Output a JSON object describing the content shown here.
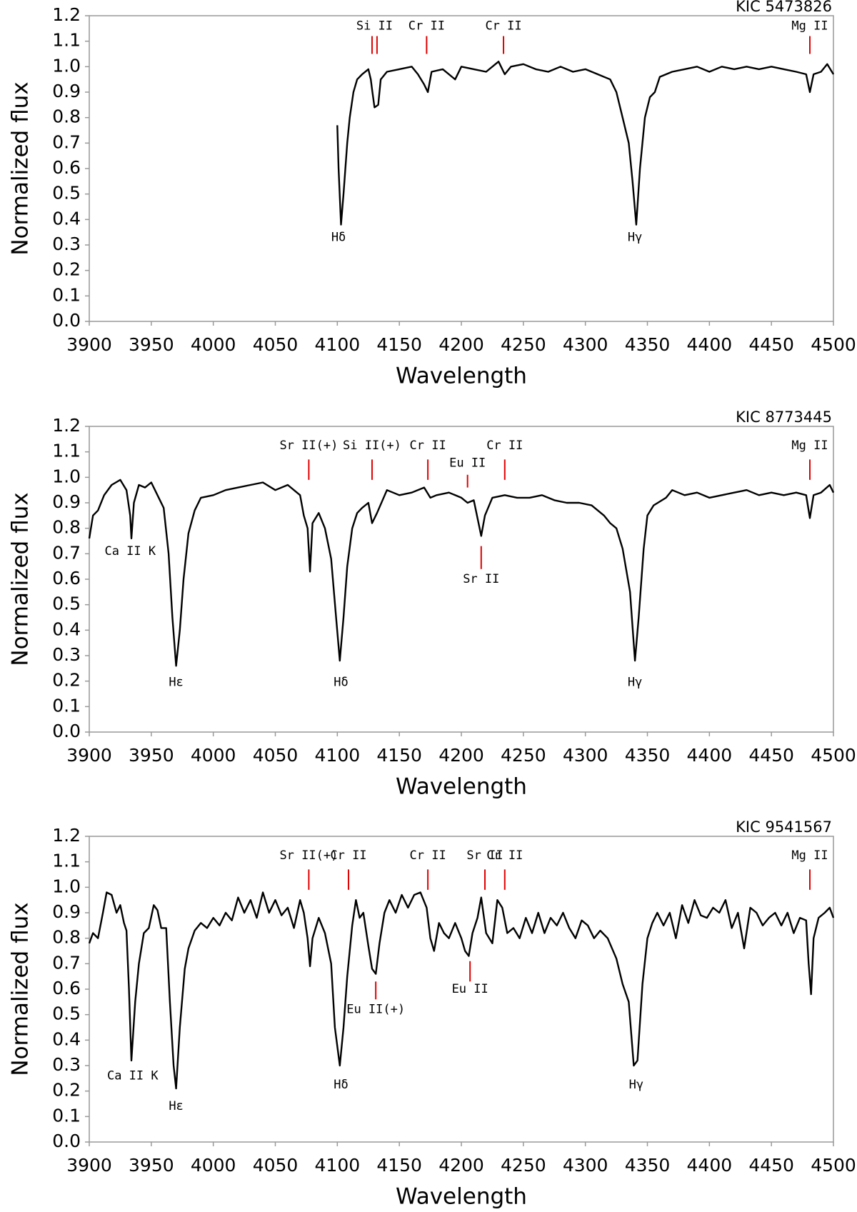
{
  "chart_data": [
    {
      "type": "line",
      "title": "KIC 5473826",
      "xlabel": "Wavelength",
      "ylabel": "Normalized flux",
      "color": "#000000",
      "marker_color": "#e00000",
      "xlim": [
        3900,
        4500
      ],
      "xticks": [
        3900,
        3950,
        4000,
        4050,
        4100,
        4150,
        4200,
        4250,
        4300,
        4350,
        4400,
        4450,
        4500
      ],
      "ylim": [
        0,
        1.2
      ],
      "yticks": [
        {
          "value": 0,
          "label": "0.0"
        },
        0.1,
        0.2,
        0.3,
        0.4,
        0.5,
        0.6,
        0.7,
        0.8,
        0.9,
        {
          "value": 1,
          "label": "1.0"
        },
        1.1,
        1.2
      ],
      "x": [
        4100,
        4101,
        4103,
        4105,
        4108,
        4110,
        4113,
        4116,
        4120,
        4125,
        4127,
        4128,
        4130,
        4133,
        4135,
        4140,
        4150,
        4160,
        4165,
        4170,
        4173,
        4176,
        4185,
        4195,
        4200,
        4210,
        4220,
        4230,
        4235,
        4240,
        4250,
        4260,
        4270,
        4280,
        4290,
        4300,
        4310,
        4320,
        4325,
        4330,
        4335,
        4338,
        4341,
        4344,
        4348,
        4352,
        4356,
        4360,
        4370,
        4380,
        4390,
        4400,
        4410,
        4420,
        4430,
        4440,
        4450,
        4460,
        4470,
        4478,
        4481,
        4484,
        4490,
        4495,
        4500
      ],
      "values": [
        0.77,
        0.6,
        0.38,
        0.5,
        0.7,
        0.8,
        0.9,
        0.95,
        0.97,
        0.99,
        0.95,
        0.91,
        0.84,
        0.85,
        0.95,
        0.98,
        0.99,
        1.0,
        0.97,
        0.93,
        0.9,
        0.98,
        0.99,
        0.95,
        1.0,
        0.99,
        0.98,
        1.02,
        0.97,
        1.0,
        1.01,
        0.99,
        0.98,
        1.0,
        0.98,
        0.99,
        0.97,
        0.95,
        0.9,
        0.8,
        0.7,
        0.55,
        0.38,
        0.6,
        0.8,
        0.88,
        0.9,
        0.96,
        0.98,
        0.99,
        1.0,
        0.98,
        1.0,
        0.99,
        1.0,
        0.99,
        1.0,
        0.99,
        0.98,
        0.97,
        0.9,
        0.97,
        0.98,
        1.01,
        0.97
      ],
      "annotations": [
        {
          "text": "Si II",
          "x": 4130,
          "y": 1.16
        },
        {
          "text": "Cr II",
          "x": 4172,
          "y": 1.16
        },
        {
          "text": "Cr II",
          "x": 4234,
          "y": 1.16
        },
        {
          "text": "Mg II",
          "x": 4481,
          "y": 1.16
        },
        {
          "text": "Hδ",
          "x": 4101,
          "y": 0.33
        },
        {
          "text": "Hγ",
          "x": 4340,
          "y": 0.33
        }
      ],
      "markers": [
        {
          "x": 4128,
          "y1": 1.05,
          "y2": 1.12
        },
        {
          "x": 4132,
          "y1": 1.05,
          "y2": 1.12
        },
        {
          "x": 4172,
          "y1": 1.05,
          "y2": 1.12
        },
        {
          "x": 4234,
          "y1": 1.05,
          "y2": 1.12
        },
        {
          "x": 4481,
          "y1": 1.05,
          "y2": 1.12
        }
      ]
    },
    {
      "type": "line",
      "title": "KIC 8773445",
      "xlabel": "Wavelength",
      "ylabel": "Normalized flux",
      "color": "#000000",
      "marker_color": "#e00000",
      "xlim": [
        3900,
        4500
      ],
      "xticks": [
        3900,
        3950,
        4000,
        4050,
        4100,
        4150,
        4200,
        4250,
        4300,
        4350,
        4400,
        4450,
        4500
      ],
      "ylim": [
        0,
        1.2
      ],
      "yticks": [
        {
          "value": 0,
          "label": "0.0"
        },
        0.1,
        0.2,
        0.3,
        0.4,
        0.5,
        0.6,
        0.7,
        0.8,
        0.9,
        {
          "value": 1,
          "label": "1.0"
        },
        1.1,
        1.2
      ],
      "x": [
        3900,
        3903,
        3907,
        3912,
        3918,
        3925,
        3930,
        3933,
        3934,
        3936,
        3940,
        3945,
        3950,
        3955,
        3960,
        3964,
        3967,
        3970,
        3973,
        3976,
        3980,
        3985,
        3990,
        4000,
        4010,
        4020,
        4030,
        4040,
        4050,
        4060,
        4070,
        4073,
        4076,
        4078,
        4080,
        4085,
        4090,
        4095,
        4099,
        4102,
        4105,
        4108,
        4112,
        4116,
        4120,
        4125,
        4128,
        4132,
        4140,
        4150,
        4160,
        4170,
        4175,
        4180,
        4190,
        4200,
        4205,
        4210,
        4213,
        4216,
        4219,
        4225,
        4235,
        4245,
        4255,
        4265,
        4275,
        4285,
        4295,
        4305,
        4315,
        4320,
        4325,
        4330,
        4336,
        4340,
        4343,
        4347,
        4350,
        4355,
        4365,
        4370,
        4380,
        4390,
        4400,
        4410,
        4420,
        4430,
        4440,
        4450,
        4460,
        4470,
        4478,
        4481,
        4484,
        4490,
        4497,
        4500
      ],
      "values": [
        0.76,
        0.85,
        0.87,
        0.93,
        0.97,
        0.99,
        0.95,
        0.85,
        0.76,
        0.9,
        0.97,
        0.96,
        0.98,
        0.93,
        0.88,
        0.7,
        0.45,
        0.26,
        0.4,
        0.6,
        0.78,
        0.87,
        0.92,
        0.93,
        0.95,
        0.96,
        0.97,
        0.98,
        0.95,
        0.97,
        0.93,
        0.85,
        0.8,
        0.63,
        0.82,
        0.86,
        0.8,
        0.68,
        0.45,
        0.28,
        0.45,
        0.65,
        0.8,
        0.86,
        0.88,
        0.9,
        0.82,
        0.86,
        0.95,
        0.93,
        0.94,
        0.96,
        0.92,
        0.93,
        0.94,
        0.92,
        0.9,
        0.91,
        0.84,
        0.77,
        0.85,
        0.92,
        0.93,
        0.92,
        0.92,
        0.93,
        0.91,
        0.9,
        0.9,
        0.89,
        0.85,
        0.82,
        0.8,
        0.72,
        0.55,
        0.28,
        0.45,
        0.72,
        0.85,
        0.89,
        0.92,
        0.95,
        0.93,
        0.94,
        0.92,
        0.93,
        0.94,
        0.95,
        0.93,
        0.94,
        0.93,
        0.94,
        0.93,
        0.84,
        0.93,
        0.94,
        0.97,
        0.94
      ],
      "annotations": [
        {
          "text": "Sr II(+)",
          "x": 4077,
          "y": 1.125
        },
        {
          "text": "Si II(+)",
          "x": 4128,
          "y": 1.125
        },
        {
          "text": "Cr II",
          "x": 4173,
          "y": 1.125
        },
        {
          "text": "Eu II",
          "x": 4205,
          "y": 1.055
        },
        {
          "text": "Cr II",
          "x": 4235,
          "y": 1.125
        },
        {
          "text": "Mg II",
          "x": 4481,
          "y": 1.125
        },
        {
          "text": "Sr II",
          "x": 4216,
          "y": 0.6
        },
        {
          "text": "Ca II K",
          "x": 3933,
          "y": 0.71
        },
        {
          "text": "Hε",
          "x": 3970,
          "y": 0.195
        },
        {
          "text": "Hδ",
          "x": 4103,
          "y": 0.195
        },
        {
          "text": "Hγ",
          "x": 4340,
          "y": 0.195
        }
      ],
      "markers": [
        {
          "x": 4077,
          "y1": 0.99,
          "y2": 1.07
        },
        {
          "x": 4128,
          "y1": 0.99,
          "y2": 1.07
        },
        {
          "x": 4173,
          "y1": 0.99,
          "y2": 1.07
        },
        {
          "x": 4205,
          "y1": 0.96,
          "y2": 1.01
        },
        {
          "x": 4235,
          "y1": 0.99,
          "y2": 1.07
        },
        {
          "x": 4481,
          "y1": 0.99,
          "y2": 1.07
        },
        {
          "x": 4216,
          "y1": 0.64,
          "y2": 0.73
        }
      ]
    },
    {
      "type": "line",
      "title": "KIC 9541567",
      "xlabel": "Wavelength",
      "ylabel": "Normalized flux",
      "color": "#000000",
      "marker_color": "#e00000",
      "xlim": [
        3900,
        4500
      ],
      "xticks": [
        3900,
        3950,
        4000,
        4050,
        4100,
        4150,
        4200,
        4250,
        4300,
        4350,
        4400,
        4450,
        4500
      ],
      "ylim": [
        0,
        1.2
      ],
      "yticks": [
        {
          "value": 0,
          "label": "0.0"
        },
        0.1,
        0.2,
        0.3,
        0.4,
        0.5,
        0.6,
        0.7,
        0.8,
        0.9,
        {
          "value": 1,
          "label": "1.0"
        },
        1.1,
        1.2
      ],
      "x": [
        3900,
        3903,
        3907,
        3911,
        3914,
        3918,
        3922,
        3925,
        3928,
        3930,
        3932,
        3934,
        3937,
        3940,
        3944,
        3948,
        3952,
        3955,
        3958,
        3962,
        3965,
        3968,
        3970,
        3973,
        3977,
        3980,
        3985,
        3990,
        3995,
        4000,
        4005,
        4010,
        4015,
        4020,
        4025,
        4030,
        4035,
        4040,
        4045,
        4050,
        4055,
        4060,
        4065,
        4070,
        4073,
        4076,
        4078,
        4080,
        4085,
        4090,
        4095,
        4098,
        4102,
        4105,
        4108,
        4112,
        4115,
        4118,
        4121,
        4125,
        4128,
        4131,
        4134,
        4138,
        4142,
        4147,
        4152,
        4157,
        4162,
        4167,
        4172,
        4175,
        4178,
        4182,
        4186,
        4190,
        4195,
        4200,
        4203,
        4206,
        4209,
        4213,
        4216,
        4220,
        4225,
        4229,
        4233,
        4237,
        4242,
        4247,
        4252,
        4257,
        4262,
        4267,
        4272,
        4277,
        4282,
        4287,
        4292,
        4297,
        4302,
        4307,
        4312,
        4318,
        4325,
        4330,
        4335,
        4339,
        4342,
        4346,
        4350,
        4354,
        4358,
        4363,
        4368,
        4373,
        4378,
        4383,
        4388,
        4393,
        4398,
        4403,
        4408,
        4413,
        4418,
        4423,
        4428,
        4433,
        4438,
        4443,
        4448,
        4453,
        4458,
        4463,
        4468,
        4473,
        4478,
        4480,
        4482,
        4484,
        4488,
        4493,
        4497,
        4500
      ],
      "values": [
        0.78,
        0.82,
        0.8,
        0.9,
        0.98,
        0.97,
        0.9,
        0.93,
        0.86,
        0.83,
        0.6,
        0.32,
        0.55,
        0.7,
        0.82,
        0.84,
        0.93,
        0.91,
        0.84,
        0.84,
        0.55,
        0.3,
        0.21,
        0.45,
        0.68,
        0.76,
        0.83,
        0.86,
        0.84,
        0.88,
        0.85,
        0.9,
        0.87,
        0.96,
        0.9,
        0.95,
        0.88,
        0.98,
        0.9,
        0.95,
        0.89,
        0.92,
        0.84,
        0.95,
        0.9,
        0.8,
        0.69,
        0.8,
        0.88,
        0.82,
        0.7,
        0.45,
        0.3,
        0.45,
        0.65,
        0.85,
        0.95,
        0.88,
        0.9,
        0.77,
        0.68,
        0.66,
        0.78,
        0.9,
        0.95,
        0.9,
        0.97,
        0.92,
        0.97,
        0.98,
        0.92,
        0.8,
        0.75,
        0.86,
        0.82,
        0.8,
        0.86,
        0.8,
        0.75,
        0.73,
        0.82,
        0.88,
        0.96,
        0.82,
        0.78,
        0.95,
        0.92,
        0.82,
        0.84,
        0.8,
        0.88,
        0.82,
        0.9,
        0.82,
        0.88,
        0.85,
        0.9,
        0.84,
        0.8,
        0.87,
        0.85,
        0.8,
        0.83,
        0.8,
        0.72,
        0.62,
        0.55,
        0.3,
        0.32,
        0.62,
        0.8,
        0.86,
        0.9,
        0.85,
        0.9,
        0.8,
        0.93,
        0.86,
        0.95,
        0.89,
        0.88,
        0.92,
        0.9,
        0.95,
        0.84,
        0.9,
        0.76,
        0.92,
        0.9,
        0.85,
        0.88,
        0.9,
        0.85,
        0.9,
        0.82,
        0.88,
        0.87,
        0.7,
        0.58,
        0.8,
        0.88,
        0.9,
        0.92,
        0.88
      ],
      "annotations": [
        {
          "text": "Sr II(+)",
          "x": 4077,
          "y": 1.125
        },
        {
          "text": "Cr II",
          "x": 4109,
          "y": 1.125
        },
        {
          "text": "Cr II",
          "x": 4173,
          "y": 1.125
        },
        {
          "text": "Sr II",
          "x": 4219,
          "y": 1.125
        },
        {
          "text": "Cr II",
          "x": 4235,
          "y": 1.125
        },
        {
          "text": "Mg II",
          "x": 4481,
          "y": 1.125
        },
        {
          "text": "Eu II(+)",
          "x": 4131,
          "y": 0.52
        },
        {
          "text": "Eu II",
          "x": 4207,
          "y": 0.6
        },
        {
          "text": "Ca II K",
          "x": 3935,
          "y": 0.26
        },
        {
          "text": "Hε",
          "x": 3970,
          "y": 0.14
        },
        {
          "text": "Hδ",
          "x": 4103,
          "y": 0.225
        },
        {
          "text": "Hγ",
          "x": 4341,
          "y": 0.225
        }
      ],
      "markers": [
        {
          "x": 4077,
          "y1": 0.99,
          "y2": 1.07
        },
        {
          "x": 4109,
          "y1": 0.99,
          "y2": 1.07
        },
        {
          "x": 4173,
          "y1": 0.99,
          "y2": 1.07
        },
        {
          "x": 4219,
          "y1": 0.99,
          "y2": 1.07
        },
        {
          "x": 4235,
          "y1": 0.99,
          "y2": 1.07
        },
        {
          "x": 4481,
          "y1": 0.99,
          "y2": 1.07
        },
        {
          "x": 4131,
          "y1": 0.56,
          "y2": 0.63
        },
        {
          "x": 4207,
          "y1": 0.63,
          "y2": 0.71
        }
      ]
    }
  ]
}
